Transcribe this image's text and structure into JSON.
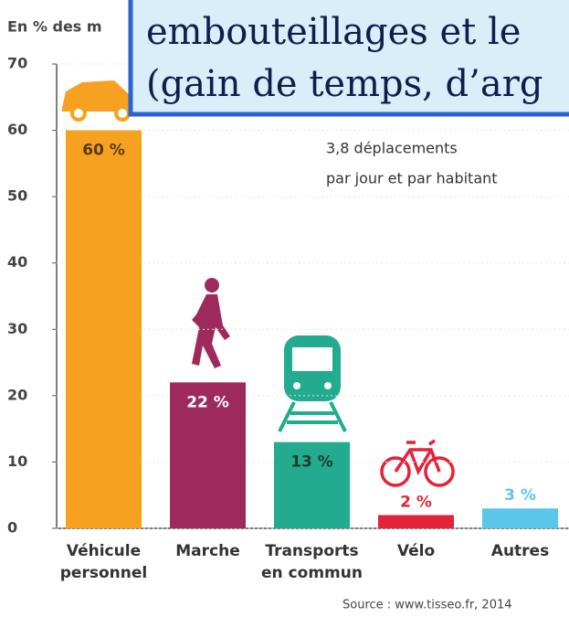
{
  "chart_data": {
    "type": "bar",
    "y_label": "En % des m",
    "categories": [
      "Véhicule personnel",
      "Marche",
      "Transports en commun",
      "Vélo",
      "Autres"
    ],
    "values": [
      60,
      22,
      13,
      2,
      3
    ],
    "value_labels": [
      "60 %",
      "22 %",
      "13 %",
      "2 %",
      "3 %"
    ],
    "colors": [
      "#f6a220",
      "#9e2a5c",
      "#22ab8e",
      "#e2233a",
      "#5cc6ea"
    ],
    "value_label_colors": [
      "#5a3a10",
      "#ffffff",
      "#1d3b33",
      "#e2233a",
      "#5cc6ea"
    ],
    "ylim": [
      0,
      70
    ],
    "yticks": [
      0,
      10,
      20,
      30,
      40,
      50,
      60,
      70
    ],
    "grid": true,
    "annotation": [
      "3,8 déplacements",
      "par jour et par habitant"
    ],
    "source": "Source : www.tisseo.fr, 2014",
    "overlay": [
      "embouteillages et le",
      "(gain de temps, d’arg"
    ]
  }
}
